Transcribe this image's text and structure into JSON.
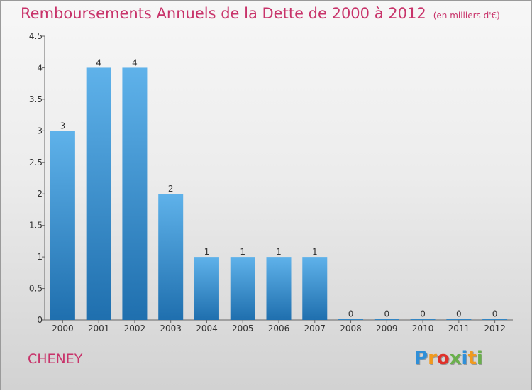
{
  "title": "Remboursements Annuels de la Dette de 2000 à 2012",
  "unit": "(en milliers d'€)",
  "commune": "CHENEY",
  "logo": {
    "text": "Proxiti",
    "letters": [
      "P",
      "r",
      "o",
      "x",
      "i",
      "t",
      "i"
    ],
    "colors": [
      "#2f8fd8",
      "#f29a1d",
      "#e0312a",
      "#6ab04c",
      "#2f8fd8",
      "#f29a1d",
      "#6ab04c"
    ]
  },
  "colors": {
    "title": "#c8336a",
    "bar_light": "#5fb2ea",
    "bar_dark": "#1f6fae"
  },
  "chart_data": {
    "type": "bar",
    "title": "Remboursements Annuels de la Dette de 2000 à 2012",
    "categories": [
      "2000",
      "2001",
      "2002",
      "2003",
      "2004",
      "2005",
      "2006",
      "2007",
      "2008",
      "2009",
      "2010",
      "2011",
      "2012"
    ],
    "values": [
      3,
      4,
      4,
      2,
      1,
      1,
      1,
      1,
      0,
      0,
      0,
      0,
      0
    ],
    "data_labels": [
      "3",
      "4",
      "4",
      "2",
      "1",
      "1",
      "1",
      "1",
      "0",
      "0",
      "0",
      "0",
      "0"
    ],
    "y_ticks": [
      "0",
      "0.5",
      "1",
      "1.5",
      "2",
      "2.5",
      "3",
      "3.5",
      "4",
      "4.5"
    ],
    "ylim": [
      0,
      4.5
    ],
    "grid": false,
    "legend": "none"
  }
}
